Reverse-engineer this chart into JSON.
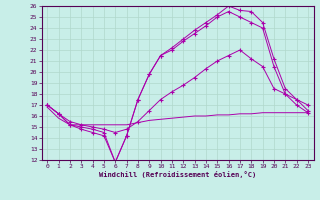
{
  "xlabel": "Windchill (Refroidissement éolien,°C)",
  "bg_color": "#c8eee8",
  "grid_color": "#b0d8cc",
  "line_color": "#aa00aa",
  "xlim": [
    -0.5,
    23.5
  ],
  "ylim": [
    12,
    26
  ],
  "xticks": [
    0,
    1,
    2,
    3,
    4,
    5,
    6,
    7,
    8,
    9,
    10,
    11,
    12,
    13,
    14,
    15,
    16,
    17,
    18,
    19,
    20,
    21,
    22,
    23
  ],
  "yticks": [
    12,
    13,
    14,
    15,
    16,
    17,
    18,
    19,
    20,
    21,
    22,
    23,
    24,
    25,
    26
  ],
  "line1_x": [
    0,
    1,
    2,
    3,
    4,
    5,
    6,
    7,
    8,
    9,
    10,
    11,
    12,
    13,
    14,
    15,
    16,
    17,
    18,
    19,
    20,
    21,
    22,
    23
  ],
  "line1_y": [
    17.0,
    16.2,
    15.2,
    15.0,
    14.8,
    14.5,
    11.8,
    14.2,
    17.5,
    19.8,
    21.5,
    22.2,
    23.0,
    23.8,
    24.5,
    25.2,
    26.0,
    25.6,
    25.5,
    24.5,
    21.2,
    18.5,
    17.5,
    16.5
  ],
  "line2_x": [
    0,
    1,
    2,
    3,
    4,
    5,
    6,
    7,
    8,
    9,
    10,
    11,
    12,
    13,
    14,
    15,
    16,
    17,
    18,
    19,
    20,
    21,
    22,
    23
  ],
  "line2_y": [
    17.0,
    16.2,
    15.2,
    14.8,
    14.5,
    14.2,
    11.8,
    14.2,
    17.5,
    19.8,
    21.5,
    22.0,
    22.8,
    23.5,
    24.2,
    25.0,
    25.5,
    25.0,
    24.5,
    24.0,
    20.5,
    18.0,
    17.0,
    16.3
  ],
  "line3_x": [
    0,
    1,
    2,
    3,
    4,
    5,
    6,
    7,
    8,
    9,
    10,
    11,
    12,
    13,
    14,
    15,
    16,
    17,
    18,
    19,
    20,
    21,
    22,
    23
  ],
  "line3_y": [
    16.8,
    15.8,
    15.2,
    15.2,
    15.2,
    15.2,
    15.2,
    15.2,
    15.4,
    15.6,
    15.7,
    15.8,
    15.9,
    16.0,
    16.0,
    16.1,
    16.1,
    16.2,
    16.2,
    16.3,
    16.3,
    16.3,
    16.3,
    16.3
  ],
  "line4_x": [
    0,
    1,
    2,
    3,
    4,
    5,
    6,
    7,
    8,
    9,
    10,
    11,
    12,
    13,
    14,
    15,
    16,
    17,
    18,
    19,
    20,
    21,
    22,
    23
  ],
  "line4_y": [
    17.0,
    16.2,
    15.5,
    15.2,
    15.0,
    14.8,
    14.5,
    14.8,
    15.5,
    16.5,
    17.5,
    18.2,
    18.8,
    19.5,
    20.3,
    21.0,
    21.5,
    22.0,
    21.2,
    20.5,
    18.5,
    18.0,
    17.5,
    17.0
  ]
}
